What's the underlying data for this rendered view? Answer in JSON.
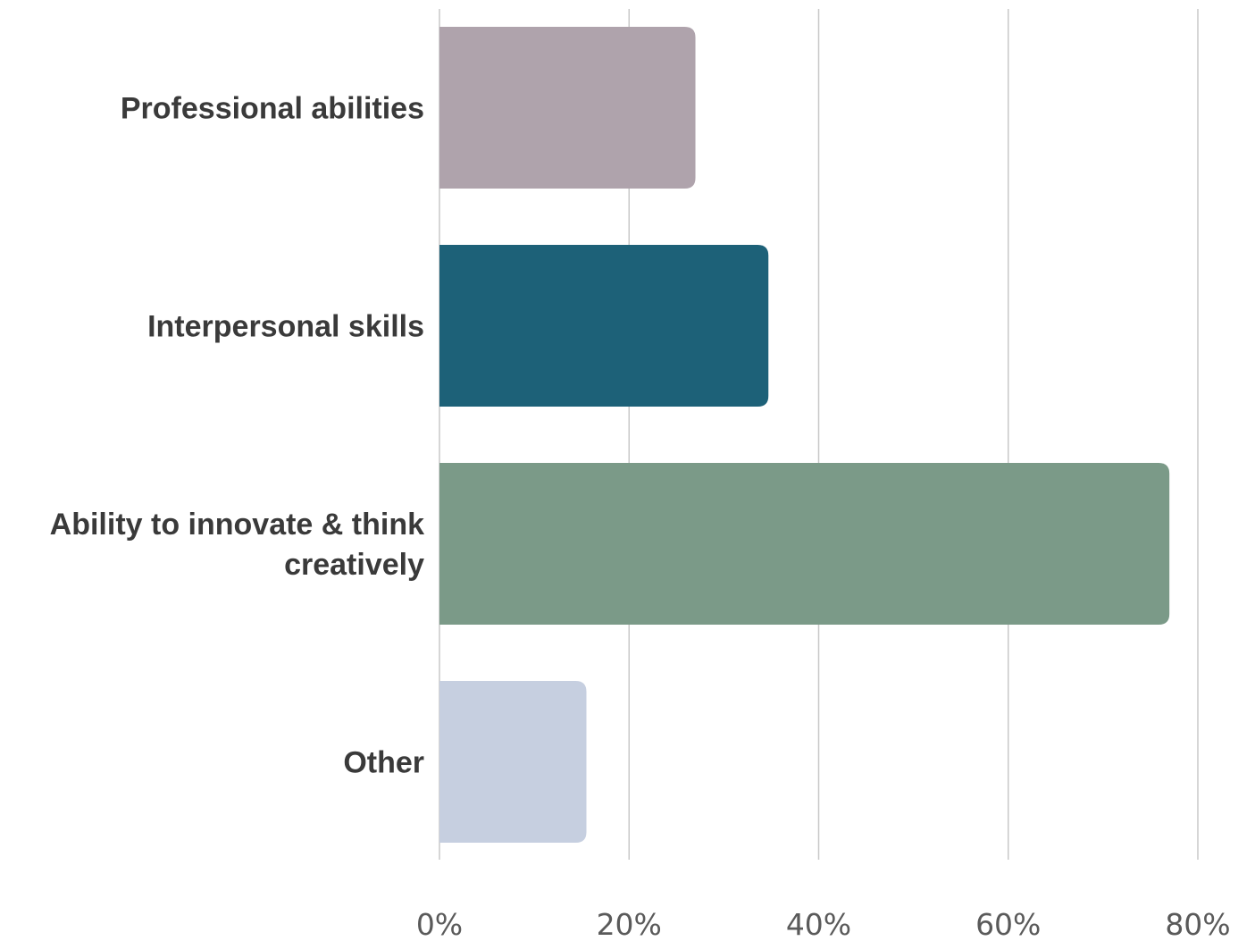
{
  "chart_data": {
    "type": "bar",
    "orientation": "horizontal",
    "categories": [
      [
        "Professional abilities"
      ],
      [
        "Interpersonal skills"
      ],
      [
        "Ability to innovate & think",
        "creatively"
      ],
      [
        "Other"
      ]
    ],
    "values": [
      27,
      34.7,
      77,
      15.5
    ],
    "colors": [
      "#afa3ac",
      "#1d6178",
      "#7b9a88",
      "#c6cfe0"
    ],
    "xlim": [
      0,
      80
    ],
    "x_ticks": [
      0,
      20,
      40,
      60,
      80
    ],
    "x_tick_labels": [
      "0%",
      "20%",
      "40%",
      "60%",
      "80%"
    ],
    "grid": "vertical",
    "legend": "none"
  }
}
